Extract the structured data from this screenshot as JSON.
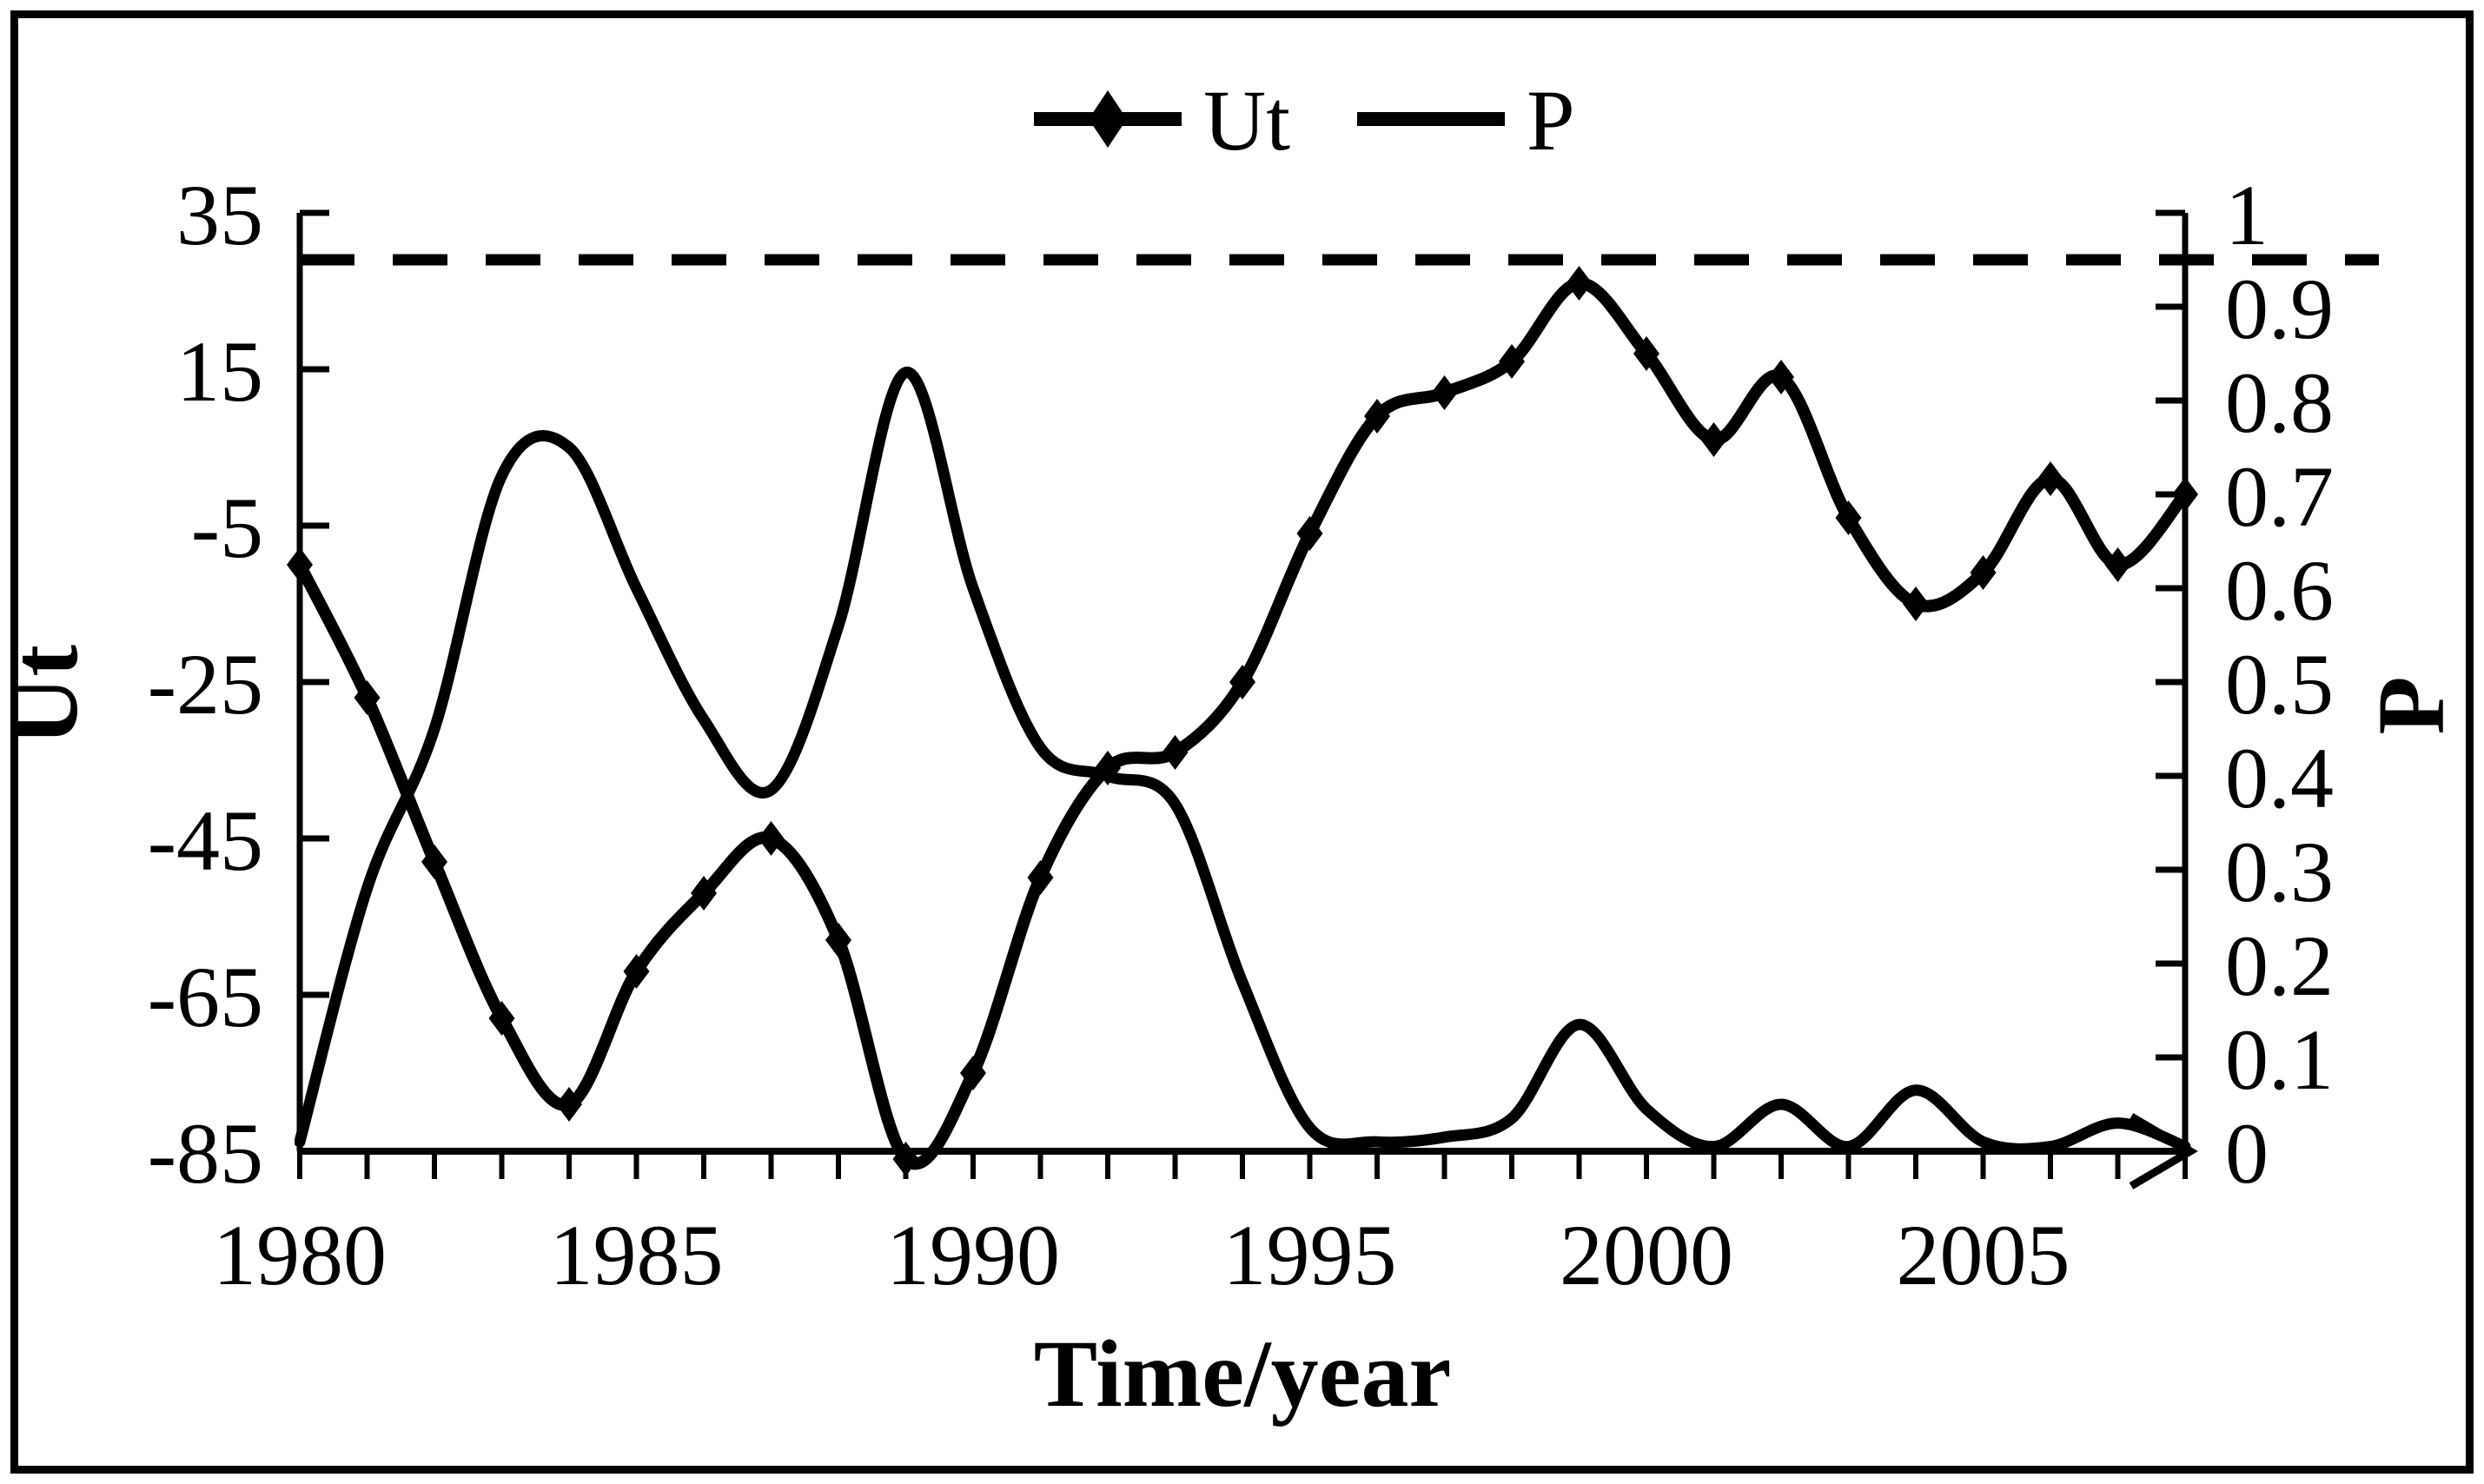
{
  "figure": {
    "background": "#ffffff",
    "line_color": "#000000",
    "border_color": "#000000"
  },
  "legend": {
    "ut_label": "Ut",
    "p_label": "P"
  },
  "chart_data": {
    "type": "line",
    "title": "",
    "xlabel": "Time/year",
    "ylabel_left": "Ut",
    "ylabel_right": "P",
    "x_axis": {
      "range": [
        1980,
        2008
      ],
      "tick_every": 1,
      "tick_labels": [
        "1980",
        "1985",
        "1990",
        "1995",
        "2000",
        "2005"
      ],
      "tick_label_years": [
        1980,
        1985,
        1990,
        1995,
        2000,
        2005
      ],
      "arrow_at_end": true
    },
    "left_axis": {
      "label": "Ut",
      "range": [
        -85,
        35
      ],
      "ticks": [
        35,
        15,
        -5,
        -25,
        -45,
        -65,
        -85
      ]
    },
    "right_axis": {
      "label": "P",
      "range": [
        0,
        1
      ],
      "ticks": [
        1,
        0.9,
        0.8,
        0.7,
        0.6,
        0.5,
        0.4,
        0.3,
        0.2,
        0.1,
        0
      ]
    },
    "ref_line": {
      "axis": "right",
      "value": 0.95,
      "style": "dashed"
    },
    "x": [
      1980,
      1981,
      1982,
      1983,
      1984,
      1985,
      1986,
      1987,
      1988,
      1989,
      1990,
      1991,
      1992,
      1993,
      1994,
      1995,
      1996,
      1997,
      1998,
      1999,
      2000,
      2001,
      2002,
      2003,
      2004,
      2005,
      2006,
      2007,
      2008
    ],
    "series": [
      {
        "name": "Ut",
        "axis": "left",
        "marker": "diamond",
        "values": [
          -10,
          -27,
          -48,
          -68,
          -79,
          -62,
          -52,
          -45,
          -58,
          -86,
          -75,
          -50,
          -36,
          -34,
          -25,
          -6,
          9,
          12,
          16,
          26,
          17,
          6,
          14,
          -4,
          -15,
          -11,
          1,
          -10,
          -1
        ]
      },
      {
        "name": "P",
        "axis": "right",
        "marker": "none",
        "values": [
          0.01,
          0.28,
          0.45,
          0.72,
          0.75,
          0.6,
          0.46,
          0.385,
          0.56,
          0.83,
          0.6,
          0.43,
          0.4,
          0.37,
          0.18,
          0.025,
          0.01,
          0.015,
          0.035,
          0.135,
          0.045,
          0.005,
          0.05,
          0.005,
          0.065,
          0.01,
          0.005,
          0.03,
          0.005
        ]
      }
    ],
    "legend_position": "top-center",
    "grid": false
  }
}
